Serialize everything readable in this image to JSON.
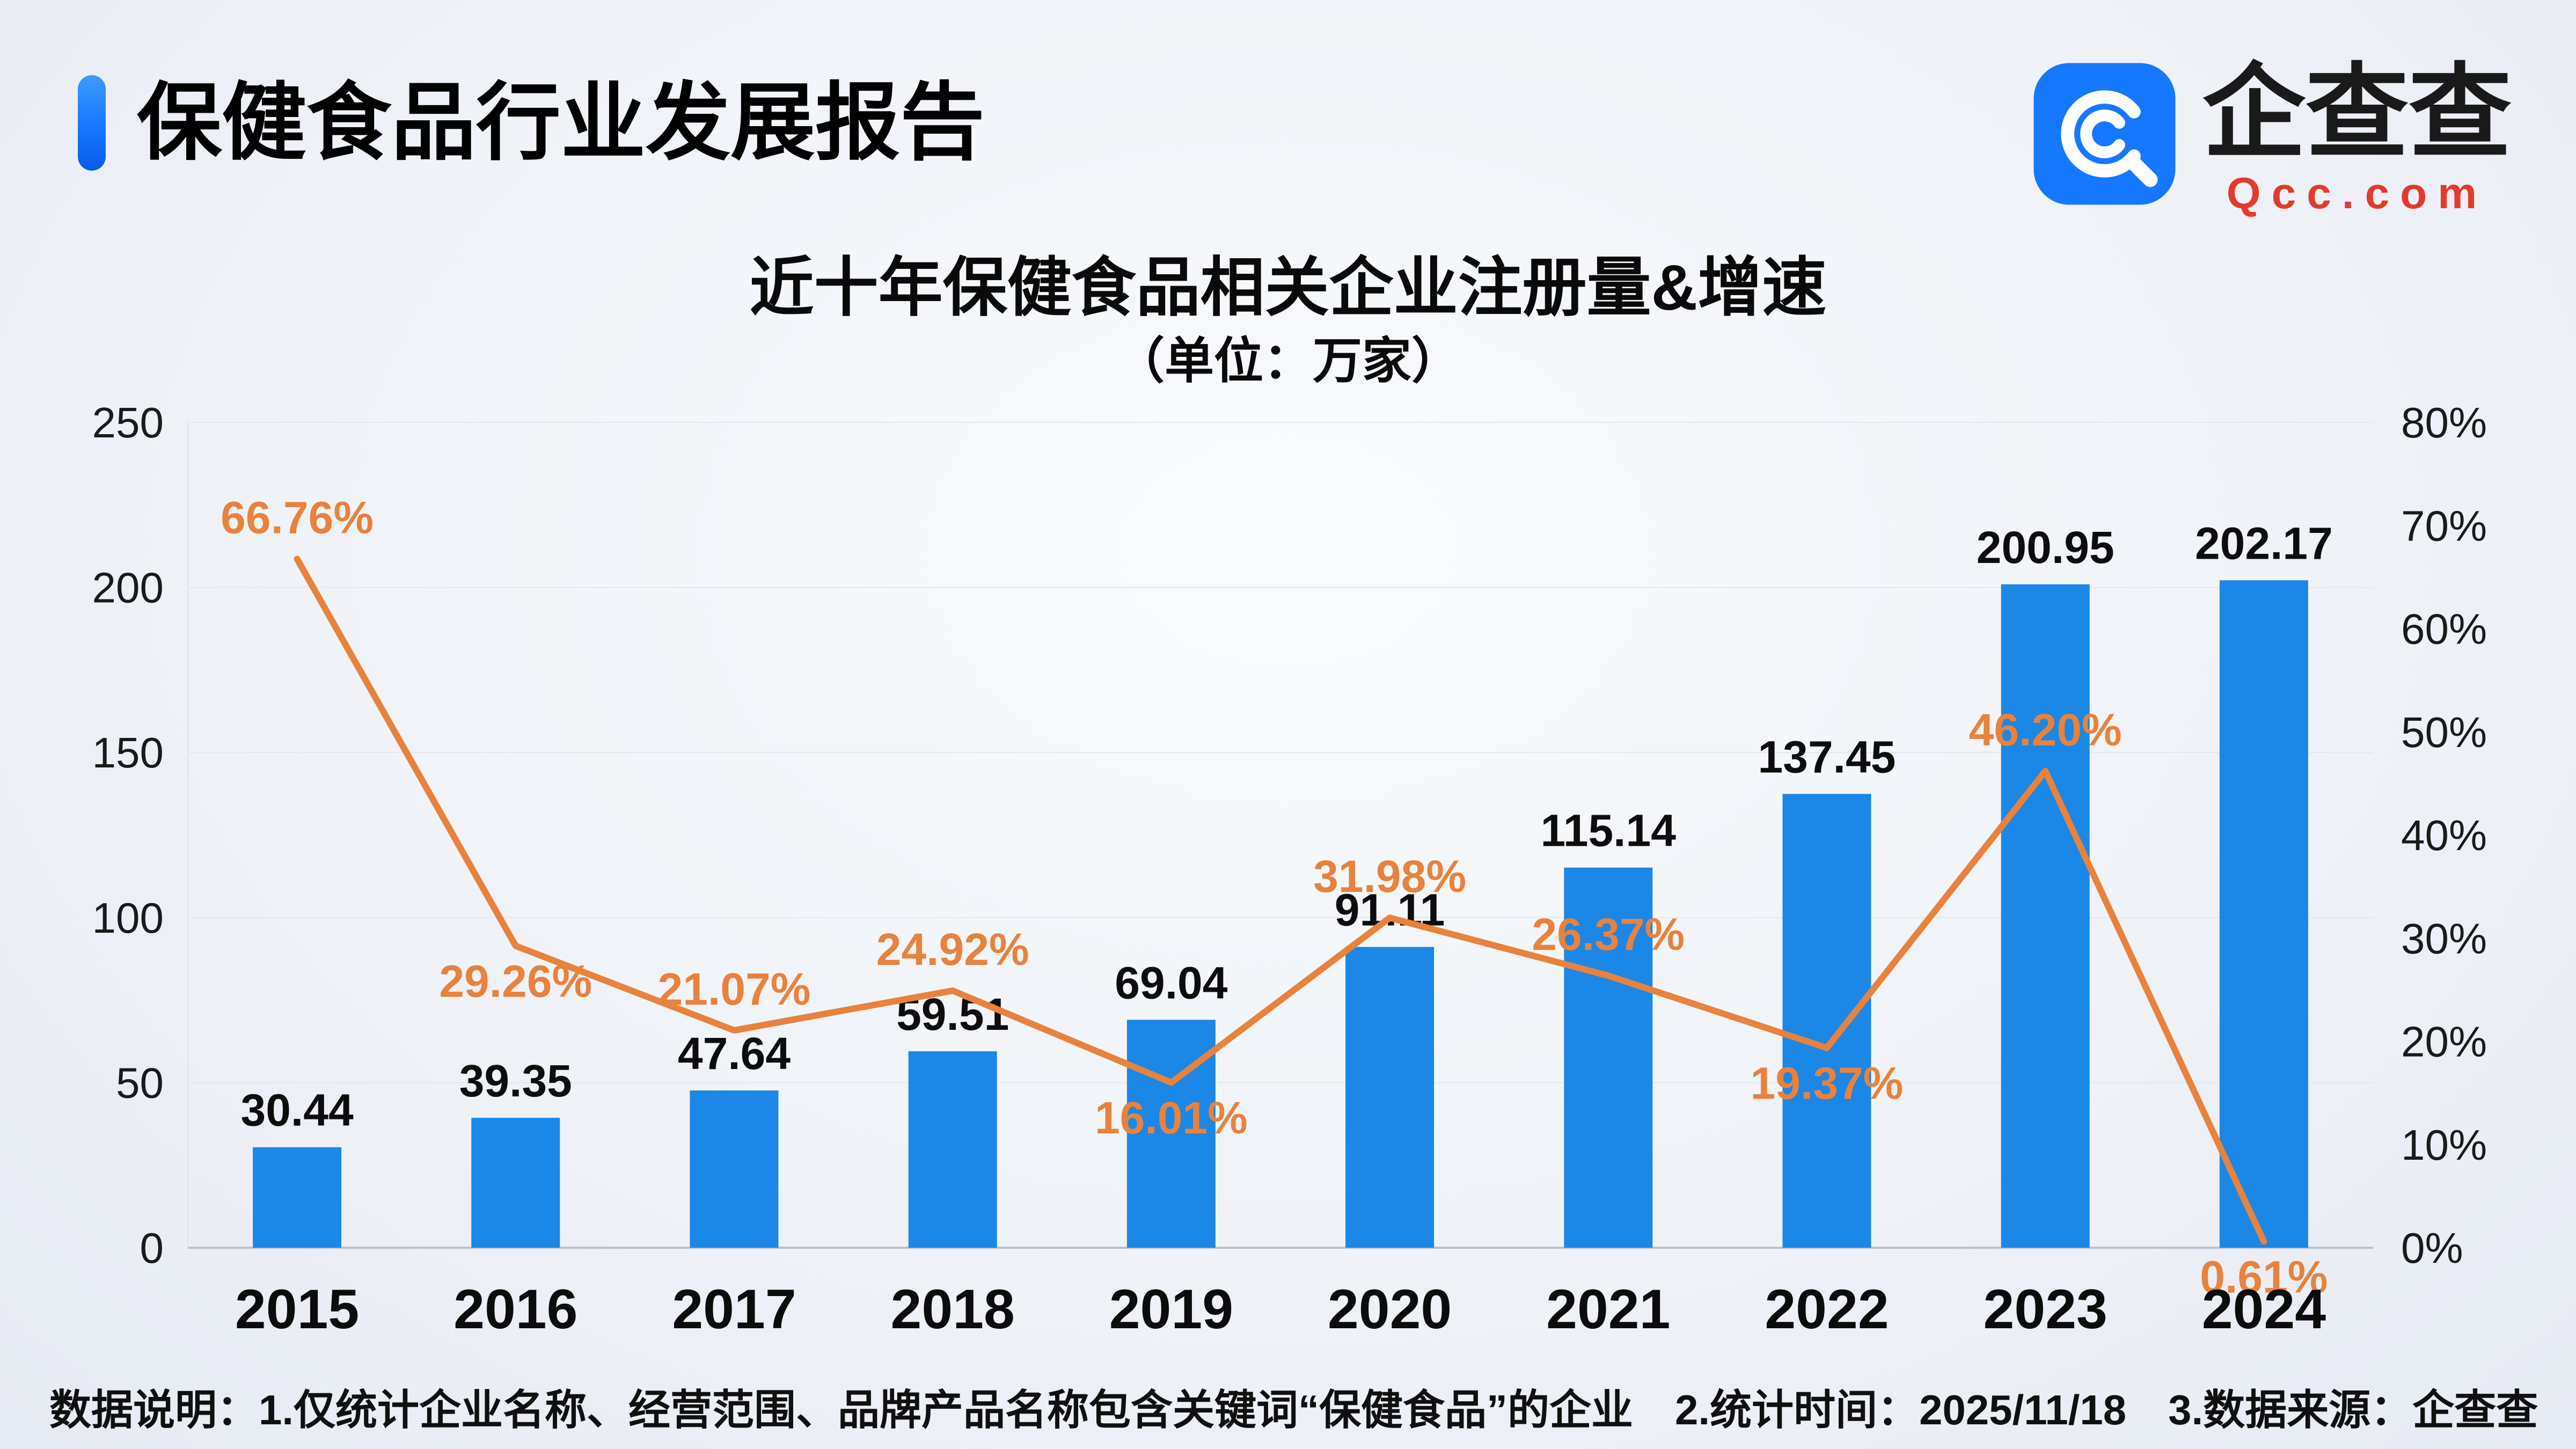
{
  "theme": {
    "accent_blue": "#1677FF",
    "bar_blue": "#1B87E6",
    "line_orange": "#E8823C",
    "brand_red": "#E23B2E",
    "page_bg": "#EFF2F7"
  },
  "header": {
    "title": "保健食品行业发展报告"
  },
  "logo": {
    "name": "企查查",
    "domain": "Qcc.com"
  },
  "chart_data": {
    "type": "bar+line",
    "title": "近十年保健食品相关企业注册量&增速",
    "subtitle": "（单位：万家）",
    "categories": [
      "2015",
      "2016",
      "2017",
      "2018",
      "2019",
      "2020",
      "2021",
      "2022",
      "2023",
      "2024"
    ],
    "series": [
      {
        "name": "注册量（万家）",
        "chart_type": "bar",
        "axis": "left",
        "color": "#1B87E6",
        "values": [
          30.44,
          39.35,
          47.64,
          59.51,
          69.04,
          91.11,
          115.14,
          137.45,
          200.95,
          202.17
        ],
        "labels": [
          "30.44",
          "39.35",
          "47.64",
          "59.51",
          "69.04",
          "91.11",
          "115.14",
          "137.45",
          "200.95",
          "202.17"
        ]
      },
      {
        "name": "增速（%）",
        "chart_type": "line",
        "axis": "right",
        "color": "#E8823C",
        "values": [
          66.76,
          29.26,
          21.07,
          24.92,
          16.01,
          31.98,
          26.37,
          19.37,
          46.2,
          0.61
        ],
        "labels": [
          "66.76%",
          "29.26%",
          "21.07%",
          "24.92%",
          "16.01%",
          "31.98%",
          "26.37%",
          "19.37%",
          "46.20%",
          "0.61%"
        ]
      }
    ],
    "left_axis": {
      "min": 0,
      "max": 250,
      "ticks": [
        0,
        50,
        100,
        150,
        200,
        250
      ]
    },
    "right_axis": {
      "min": 0,
      "max": 80,
      "ticks": [
        "0%",
        "10%",
        "20%",
        "30%",
        "40%",
        "50%",
        "60%",
        "70%",
        "80%"
      ]
    },
    "grid": true,
    "legend": "none",
    "line_label_positions": [
      "above",
      "below",
      "above",
      "above",
      "below",
      "above",
      "above",
      "below",
      "above",
      "below"
    ]
  },
  "footer": {
    "note": "数据说明：1.仅统计企业名称、经营范围、品牌产品名称包含关键词“保健食品”的企业　2.统计时间：2025/11/18　3.数据来源：企查查"
  }
}
